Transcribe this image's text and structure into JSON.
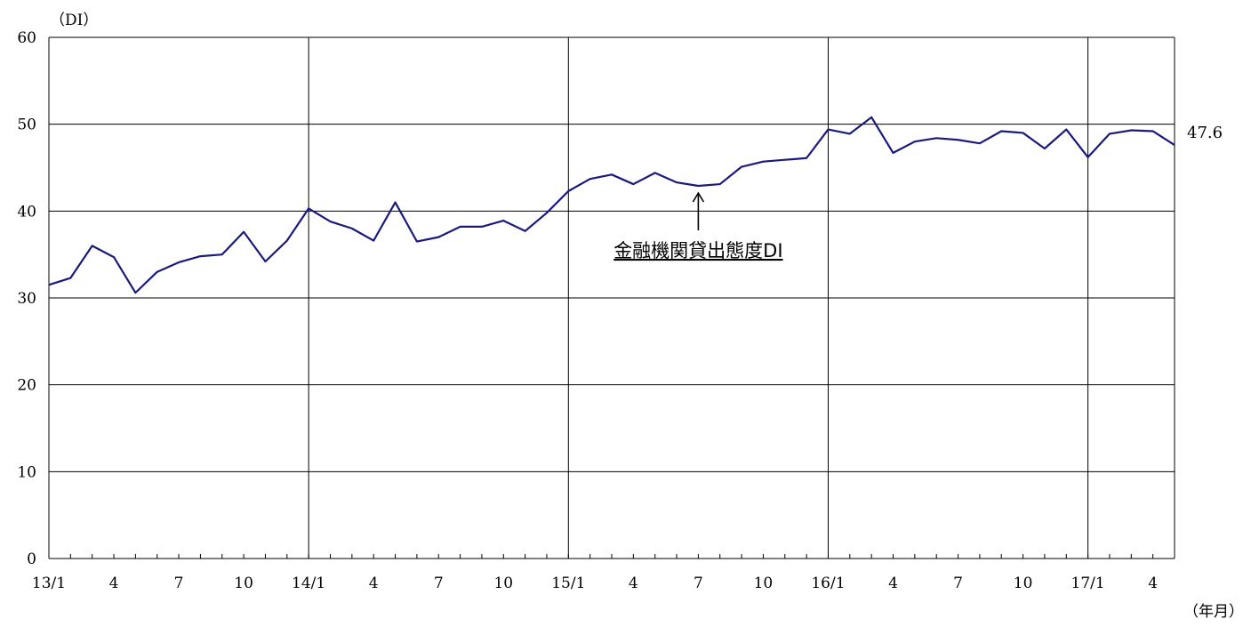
{
  "chart_data": {
    "type": "line",
    "y_unit_label": "（DI）",
    "x_unit_label": "（年月）",
    "ylim": [
      0,
      60
    ],
    "y_ticks": [
      0,
      10,
      20,
      30,
      40,
      50,
      60
    ],
    "x_tick_labels": [
      "13/1",
      "4",
      "7",
      "10",
      "14/1",
      "4",
      "7",
      "10",
      "15/1",
      "4",
      "7",
      "10",
      "16/1",
      "4",
      "7",
      "10",
      "17/1",
      "4"
    ],
    "grid": true,
    "series": [
      {
        "name": "金融機関貸出態度DI",
        "color": "#1a1a7a",
        "values": [
          31.5,
          32.3,
          36.0,
          34.7,
          30.6,
          33.0,
          34.1,
          34.8,
          35.0,
          37.6,
          34.2,
          36.6,
          40.3,
          38.8,
          38.0,
          36.6,
          41.0,
          36.5,
          37.0,
          38.2,
          38.2,
          38.9,
          37.7,
          39.8,
          42.3,
          43.7,
          44.2,
          43.1,
          44.4,
          43.3,
          42.9,
          43.1,
          45.1,
          45.7,
          45.9,
          46.1,
          49.4,
          48.9,
          50.8,
          46.7,
          48.0,
          48.4,
          48.2,
          47.8,
          49.2,
          49.0,
          47.2,
          49.4,
          46.2,
          48.9,
          49.3,
          49.2,
          47.6
        ]
      }
    ],
    "annotation": {
      "text": "金融機関貸出態度DI",
      "target_index": 30
    },
    "end_label": "47.6"
  }
}
